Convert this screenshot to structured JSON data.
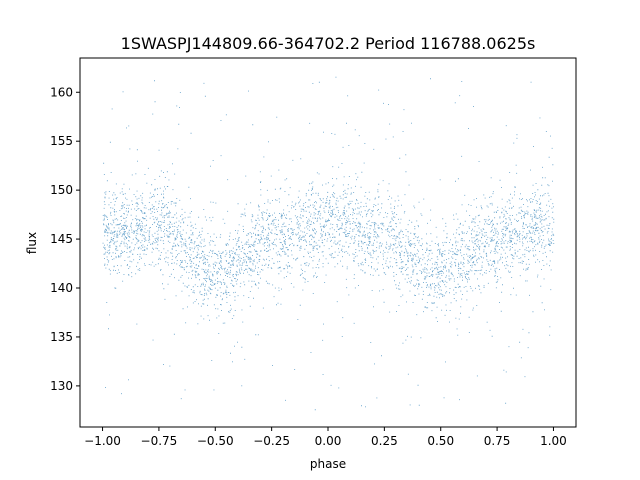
{
  "chart_data": {
    "type": "scatter",
    "title": "1SWASPJ144809.66-364702.2 Period 116788.0625s",
    "xlabel": "phase",
    "ylabel": "flux",
    "xlim": [
      -1.1,
      1.1
    ],
    "ylim": [
      125.8,
      163.5
    ],
    "xticks": [
      -1.0,
      -0.75,
      -0.5,
      -0.25,
      0.0,
      0.25,
      0.5,
      0.75,
      1.0
    ],
    "xtick_labels": [
      "−1.00",
      "−0.75",
      "−0.50",
      "−0.25",
      "0.00",
      "0.25",
      "0.50",
      "0.75",
      "1.00"
    ],
    "yticks": [
      130,
      135,
      140,
      145,
      150,
      155,
      160
    ],
    "ytick_labels": [
      "130",
      "135",
      "140",
      "145",
      "150",
      "155",
      "160"
    ],
    "grid": false,
    "series": [
      {
        "color": "#1f77b4",
        "description_points": "dense folded light curve; flux oscillates with phase",
        "trend": {
          "x": [
            -1.0,
            -0.75,
            -0.5,
            -0.25,
            0.0,
            0.25,
            0.5,
            0.75,
            1.0
          ],
          "y": [
            145.5,
            146.5,
            141.5,
            145.0,
            146.5,
            145.5,
            141.5,
            145.0,
            146.5
          ]
        },
        "spread_sd": 2.2,
        "flux_min": 127.5,
        "flux_max": 162.0
      }
    ]
  }
}
